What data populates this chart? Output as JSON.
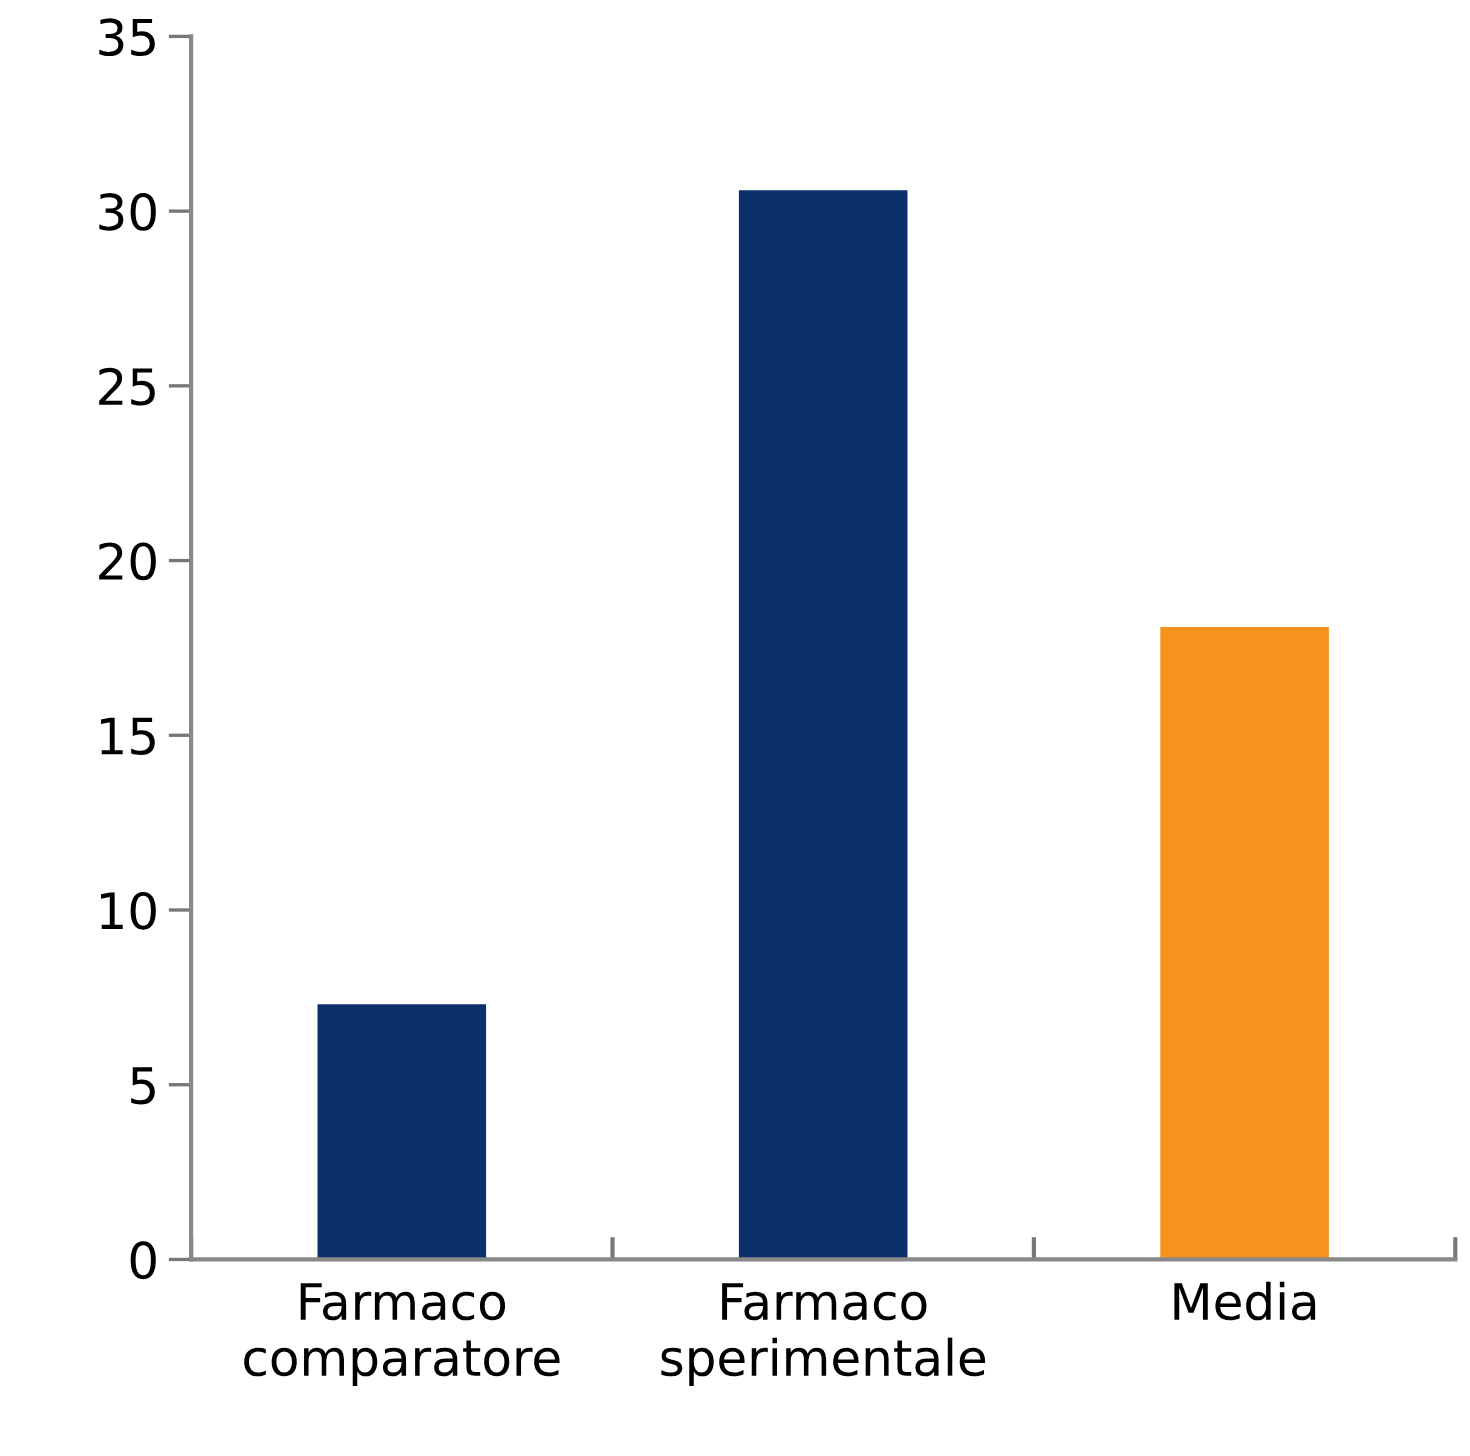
{
  "chart_data": {
    "type": "bar",
    "categories": [
      "Farmaco\ncomparatore",
      "Farmaco\nsperimentale",
      "Media"
    ],
    "values": [
      7.3,
      30.6,
      18.1
    ],
    "colors": [
      "#0a2f6b",
      "#0a2f6b",
      "#f5931e"
    ],
    "ylim": [
      0,
      35
    ],
    "yticks": [
      0,
      5,
      10,
      15,
      20,
      25,
      30,
      35
    ],
    "grid": false
  }
}
